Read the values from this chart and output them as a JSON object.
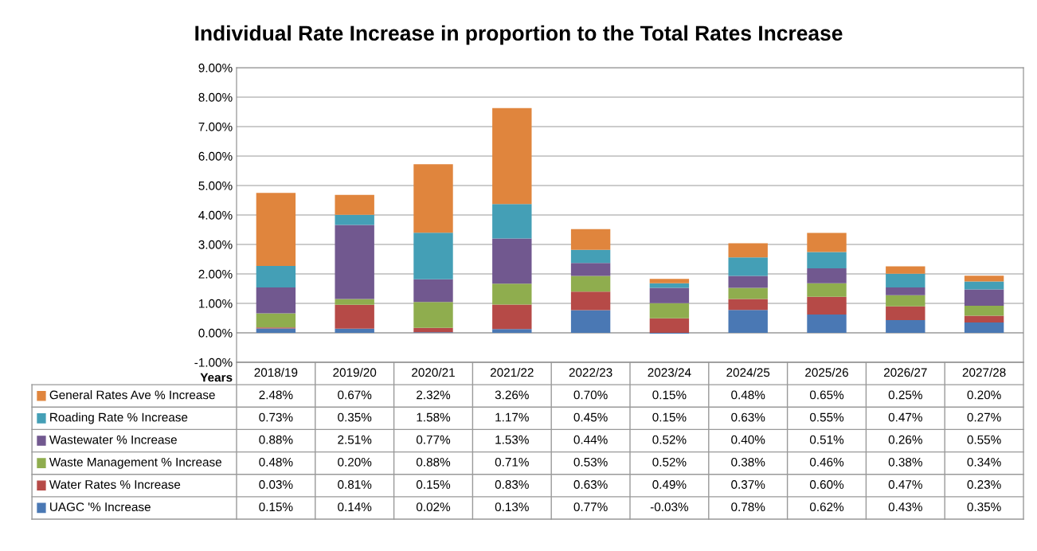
{
  "chart_data": {
    "type": "bar",
    "stacked": true,
    "title": "Individual Rate Increase in proportion to the Total Rates Increase",
    "xlabel": "Years",
    "categories": [
      "2018/19",
      "2019/20",
      "2020/21",
      "2021/22",
      "2022/23",
      "2023/24",
      "2024/25",
      "2025/26",
      "2026/27",
      "2027/28"
    ],
    "series": [
      {
        "name": "UAGC '% Increase",
        "color": "#4a78b4",
        "values": [
          0.15,
          0.14,
          0.02,
          0.13,
          0.77,
          -0.03,
          0.78,
          0.62,
          0.43,
          0.35
        ],
        "value_labels": [
          "0.15%",
          "0.14%",
          "0.02%",
          "0.13%",
          "0.77%",
          "-0.03%",
          "0.78%",
          "0.62%",
          "0.43%",
          "0.35%"
        ]
      },
      {
        "name": "Water Rates % Increase",
        "color": "#b64a47",
        "values": [
          0.03,
          0.81,
          0.15,
          0.83,
          0.63,
          0.49,
          0.37,
          0.6,
          0.47,
          0.23
        ],
        "value_labels": [
          "0.03%",
          "0.81%",
          "0.15%",
          "0.83%",
          "0.63%",
          "0.49%",
          "0.37%",
          "0.60%",
          "0.47%",
          "0.23%"
        ]
      },
      {
        "name": "Waste Management % Increase",
        "color": "#8fad4e",
        "values": [
          0.48,
          0.2,
          0.88,
          0.71,
          0.53,
          0.52,
          0.38,
          0.46,
          0.38,
          0.34
        ],
        "value_labels": [
          "0.48%",
          "0.20%",
          "0.88%",
          "0.71%",
          "0.53%",
          "0.52%",
          "0.38%",
          "0.46%",
          "0.38%",
          "0.34%"
        ]
      },
      {
        "name": "Wastewater % Increase",
        "color": "#71588f",
        "values": [
          0.88,
          2.51,
          0.77,
          1.53,
          0.44,
          0.52,
          0.4,
          0.51,
          0.26,
          0.55
        ],
        "value_labels": [
          "0.88%",
          "2.51%",
          "0.77%",
          "1.53%",
          "0.44%",
          "0.52%",
          "0.40%",
          "0.51%",
          "0.26%",
          "0.55%"
        ]
      },
      {
        "name": "Roading Rate % Increase",
        "color": "#449fb6",
        "values": [
          0.73,
          0.35,
          1.58,
          1.17,
          0.45,
          0.15,
          0.63,
          0.55,
          0.47,
          0.27
        ],
        "value_labels": [
          "0.73%",
          "0.35%",
          "1.58%",
          "1.17%",
          "0.45%",
          "0.15%",
          "0.63%",
          "0.55%",
          "0.47%",
          "0.27%"
        ]
      },
      {
        "name": "General Rates Ave % Increase",
        "color": "#e0853d",
        "values": [
          2.48,
          0.67,
          2.32,
          3.26,
          0.7,
          0.15,
          0.48,
          0.65,
          0.25,
          0.2
        ],
        "value_labels": [
          "2.48%",
          "0.67%",
          "2.32%",
          "3.26%",
          "0.70%",
          "0.15%",
          "0.48%",
          "0.65%",
          "0.25%",
          "0.20%"
        ]
      }
    ],
    "ylim": [
      -1,
      9
    ],
    "yticks": [
      {
        "value": -1,
        "label": "-1.00%"
      },
      {
        "value": 0,
        "label": "0.00%"
      },
      {
        "value": 1,
        "label": "1.00%"
      },
      {
        "value": 2,
        "label": "2.00%"
      },
      {
        "value": 3,
        "label": "3.00%"
      },
      {
        "value": 4,
        "label": "4.00%"
      },
      {
        "value": 5,
        "label": "5.00%"
      },
      {
        "value": 6,
        "label": "6.00%"
      },
      {
        "value": 7,
        "label": "7.00%"
      },
      {
        "value": 8,
        "label": "8.00%"
      },
      {
        "value": 9,
        "label": "9.00%"
      }
    ],
    "grid": "y",
    "tick_labels": "y",
    "legend": "bottom left"
  }
}
